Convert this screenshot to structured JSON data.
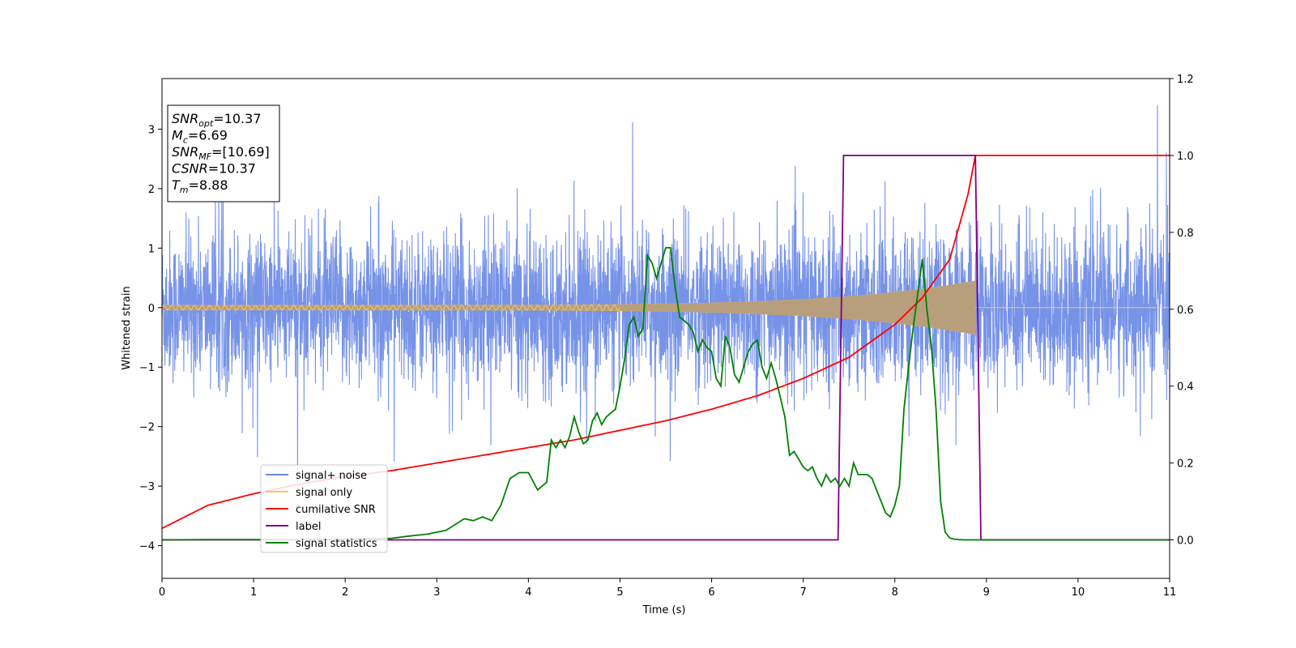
{
  "chart_data": {
    "type": "line",
    "title": "",
    "xlabel": "Time (s)",
    "ylabel": "Whitened strain",
    "y2label": "",
    "xlim": [
      0,
      11
    ],
    "ylim": [
      -4.55,
      3.85
    ],
    "y2lim": [
      -0.1,
      1.2
    ],
    "xticks": [
      0,
      1,
      2,
      3,
      4,
      5,
      6,
      7,
      8,
      9,
      10,
      11
    ],
    "yticks": [
      -4,
      -3,
      -2,
      -1,
      0,
      1,
      2,
      3
    ],
    "y2ticks": [
      "0.0",
      "0.2",
      "0.4",
      "0.6",
      "0.8",
      "1.0",
      "1.2"
    ],
    "grid": false,
    "legend_position": "lower-left",
    "annotation": {
      "lines": [
        {
          "name": "SNR",
          "sub": "opt",
          "value": "=10.37"
        },
        {
          "name": "M",
          "sub": "c",
          "value": "=6.69"
        },
        {
          "name": "SNR",
          "sub": "MF",
          "value": "=[10.69]"
        },
        {
          "name": "CSNR",
          "sub": "",
          "value": "=10.37"
        },
        {
          "name": "T",
          "sub": "m",
          "value": "=8.88"
        }
      ]
    },
    "series": [
      {
        "name": "signal+ noise",
        "color": "#6b8ae6",
        "axis": "left",
        "description": "dense noisy strain trace, approx +/-1.5 amplitude with spikes to 3.5 and -4.2"
      },
      {
        "name": "signal only",
        "color": "#f5c865",
        "axis": "left",
        "chirp": {
          "t_start": 0,
          "t_merge": 8.88,
          "amp_start": 0.04,
          "amp_end": 0.45
        }
      },
      {
        "name": "cumilative SNR",
        "color": "#ff0000",
        "axis": "right",
        "x": [
          0,
          0.5,
          1,
          1.5,
          2,
          2.5,
          3,
          3.5,
          4,
          4.5,
          5,
          5.5,
          6,
          6.5,
          7,
          7.5,
          8,
          8.3,
          8.6,
          8.8,
          8.88,
          11
        ],
        "y": [
          0.03,
          0.09,
          0.12,
          0.145,
          0.165,
          0.18,
          0.2,
          0.22,
          0.24,
          0.26,
          0.285,
          0.31,
          0.34,
          0.375,
          0.42,
          0.475,
          0.56,
          0.63,
          0.73,
          0.9,
          1.0,
          1.0
        ]
      },
      {
        "name": "label",
        "color": "#800080",
        "axis": "right",
        "x": [
          0,
          7.38,
          7.44,
          8.88,
          8.94,
          11
        ],
        "y": [
          0,
          0,
          1,
          1,
          0,
          0
        ]
      },
      {
        "name": "signal statistics",
        "color": "#008000",
        "axis": "right",
        "x": [
          0,
          0.5,
          1,
          1.5,
          2,
          2.5,
          2.7,
          2.9,
          3.0,
          3.1,
          3.2,
          3.3,
          3.4,
          3.5,
          3.6,
          3.7,
          3.8,
          3.9,
          4.0,
          4.1,
          4.2,
          4.25,
          4.3,
          4.35,
          4.4,
          4.45,
          4.5,
          4.55,
          4.6,
          4.65,
          4.7,
          4.75,
          4.8,
          4.85,
          4.9,
          4.95,
          5.0,
          5.05,
          5.1,
          5.15,
          5.2,
          5.25,
          5.3,
          5.35,
          5.4,
          5.45,
          5.5,
          5.55,
          5.6,
          5.65,
          5.7,
          5.75,
          5.8,
          5.85,
          5.9,
          5.95,
          6.0,
          6.05,
          6.1,
          6.15,
          6.2,
          6.25,
          6.3,
          6.35,
          6.4,
          6.45,
          6.5,
          6.55,
          6.6,
          6.65,
          6.7,
          6.75,
          6.8,
          6.85,
          6.9,
          6.95,
          7.0,
          7.05,
          7.1,
          7.15,
          7.2,
          7.25,
          7.3,
          7.35,
          7.4,
          7.45,
          7.5,
          7.55,
          7.6,
          7.65,
          7.7,
          7.75,
          7.8,
          7.85,
          7.9,
          7.95,
          8.0,
          8.05,
          8.1,
          8.15,
          8.2,
          8.25,
          8.3,
          8.35,
          8.4,
          8.45,
          8.5,
          8.55,
          8.6,
          8.65,
          8.7,
          8.75,
          8.8,
          8.85,
          8.9,
          8.95,
          9.0,
          9.1,
          9.5,
          10,
          11
        ],
        "y": [
          0.0,
          0.001,
          0.001,
          0.001,
          0.002,
          0.004,
          0.01,
          0.015,
          0.02,
          0.025,
          0.04,
          0.055,
          0.05,
          0.06,
          0.05,
          0.09,
          0.16,
          0.175,
          0.175,
          0.13,
          0.15,
          0.26,
          0.24,
          0.26,
          0.24,
          0.27,
          0.32,
          0.28,
          0.25,
          0.26,
          0.31,
          0.33,
          0.3,
          0.32,
          0.33,
          0.34,
          0.4,
          0.47,
          0.56,
          0.58,
          0.53,
          0.55,
          0.74,
          0.72,
          0.68,
          0.72,
          0.76,
          0.76,
          0.66,
          0.58,
          0.57,
          0.56,
          0.54,
          0.49,
          0.52,
          0.5,
          0.49,
          0.42,
          0.4,
          0.53,
          0.5,
          0.43,
          0.41,
          0.45,
          0.49,
          0.51,
          0.52,
          0.45,
          0.42,
          0.46,
          0.42,
          0.37,
          0.32,
          0.22,
          0.23,
          0.21,
          0.19,
          0.18,
          0.19,
          0.16,
          0.14,
          0.17,
          0.15,
          0.16,
          0.14,
          0.16,
          0.14,
          0.2,
          0.17,
          0.17,
          0.17,
          0.16,
          0.13,
          0.1,
          0.07,
          0.06,
          0.09,
          0.14,
          0.34,
          0.45,
          0.55,
          0.64,
          0.73,
          0.6,
          0.5,
          0.34,
          0.1,
          0.02,
          0.005,
          0.002,
          0.001,
          0.0,
          0.0,
          0.0,
          0.0,
          0.0,
          0.0,
          0.0,
          0.0,
          0.0,
          0.0
        ]
      }
    ]
  }
}
